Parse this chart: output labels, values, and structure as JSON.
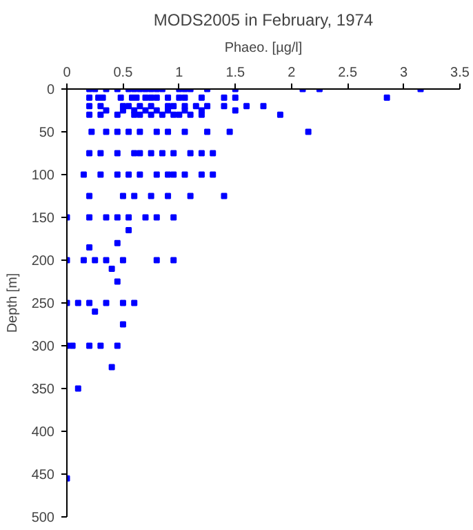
{
  "chart_data": {
    "type": "scatter",
    "title": "MODS2005 in February, 1974",
    "xlabel": "Phaeo. [µg/l]",
    "ylabel": "Depth [m]",
    "xlim": [
      0,
      3.5
    ],
    "xticks": [
      0,
      0.5,
      1,
      1.5,
      2,
      2.5,
      3,
      3.5
    ],
    "ylim": [
      500,
      0
    ],
    "yticks": [
      0,
      50,
      100,
      150,
      200,
      250,
      300,
      350,
      400,
      450,
      500
    ],
    "grid": false,
    "marker": "square",
    "series": [
      {
        "color": "#0000ff",
        "x": [
          0.2,
          0.25,
          0.35,
          0.45,
          0.55,
          0.6,
          0.65,
          0.7,
          0.75,
          0.8,
          0.85,
          1.0,
          1.05,
          1.1,
          1.25,
          1.5,
          2.1,
          2.25,
          3.15,
          0.2,
          0.28,
          0.32,
          0.48,
          0.58,
          0.62,
          0.7,
          0.75,
          0.8,
          0.9,
          1.0,
          1.05,
          1.2,
          1.4,
          1.5,
          2.85,
          0.2,
          0.3,
          0.5,
          0.55,
          0.65,
          0.75,
          0.9,
          0.95,
          1.05,
          1.15,
          1.25,
          1.4,
          1.6,
          1.75,
          0.35,
          0.5,
          0.6,
          0.7,
          0.8,
          0.9,
          1.05,
          1.2,
          1.5,
          0.2,
          0.3,
          0.45,
          0.6,
          0.65,
          0.75,
          0.85,
          0.95,
          1.0,
          1.1,
          1.2,
          1.9,
          0.22,
          0.35,
          0.45,
          0.55,
          0.65,
          0.8,
          0.9,
          1.05,
          1.25,
          1.45,
          2.15,
          0.2,
          0.3,
          0.45,
          0.6,
          0.65,
          0.75,
          0.85,
          0.95,
          1.1,
          1.2,
          1.3,
          0.15,
          0.3,
          0.45,
          0.55,
          0.65,
          0.8,
          0.9,
          0.95,
          1.05,
          1.2,
          1.3,
          0.2,
          0.5,
          0.6,
          0.75,
          0.9,
          1.1,
          1.4,
          0,
          0.2,
          0.35,
          0.45,
          0.55,
          0.7,
          0.8,
          0.95,
          0,
          0.15,
          0.25,
          0.35,
          0.5,
          0.8,
          0.95,
          0,
          0.1,
          0.2,
          0.35,
          0.5,
          0.6,
          0,
          0.05,
          0.2,
          0.3,
          0.45,
          0.1,
          0.4,
          0.5,
          0.25,
          0.45,
          0.4,
          0.2,
          0.55,
          0.45,
          0
        ],
        "values": [
          0,
          0,
          0,
          0,
          0,
          0,
          0,
          0,
          0,
          0,
          0,
          0,
          0,
          0,
          0,
          0,
          0,
          0,
          0,
          10,
          10,
          10,
          10,
          10,
          10,
          10,
          10,
          10,
          10,
          10,
          10,
          10,
          10,
          10,
          10,
          20,
          20,
          20,
          20,
          20,
          20,
          20,
          20,
          20,
          20,
          20,
          20,
          20,
          20,
          25,
          25,
          25,
          25,
          25,
          25,
          25,
          25,
          25,
          30,
          30,
          30,
          30,
          30,
          30,
          30,
          30,
          30,
          30,
          30,
          30,
          50,
          50,
          50,
          50,
          50,
          50,
          50,
          50,
          50,
          50,
          50,
          75,
          75,
          75,
          75,
          75,
          75,
          75,
          75,
          75,
          75,
          75,
          100,
          100,
          100,
          100,
          100,
          100,
          100,
          100,
          100,
          100,
          100,
          125,
          125,
          125,
          125,
          125,
          125,
          125,
          150,
          150,
          150,
          150,
          150,
          150,
          150,
          150,
          200,
          200,
          200,
          200,
          200,
          200,
          200,
          250,
          250,
          250,
          250,
          250,
          250,
          300,
          300,
          300,
          300,
          300,
          350,
          325,
          275,
          260,
          225,
          210,
          185,
          165,
          180,
          455
        ]
      }
    ]
  }
}
